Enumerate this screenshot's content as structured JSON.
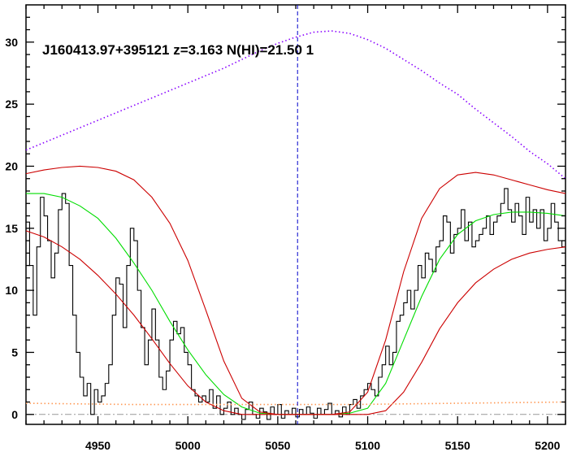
{
  "chart_data": {
    "type": "line",
    "title": "J160413.97+395121 z=3.163 N(HI)=21.50 1",
    "xlabel": "",
    "ylabel": "",
    "xlim": [
      4910,
      5210
    ],
    "ylim": [
      -0.8,
      33
    ],
    "x_ticks": [
      4950,
      5000,
      5050,
      5100,
      5150,
      5200
    ],
    "y_ticks": [
      0,
      5,
      10,
      15,
      20,
      25,
      30
    ],
    "grid": false,
    "vertical_marker": {
      "x": 5061,
      "style": "dashed",
      "color": "#0000cc"
    },
    "zero_line": {
      "y": 0,
      "style": "dash-dot",
      "color": "#999999"
    },
    "series": [
      {
        "style": "steps",
        "color": "#000000",
        "x": [
          4910,
          4912,
          4914,
          4916,
          4918,
          4920,
          4922,
          4924,
          4926,
          4928,
          4930,
          4932,
          4934,
          4936,
          4938,
          4940,
          4942,
          4944,
          4946,
          4948,
          4950,
          4952,
          4954,
          4956,
          4958,
          4960,
          4962,
          4964,
          4966,
          4968,
          4970,
          4972,
          4974,
          4976,
          4978,
          4980,
          4982,
          4984,
          4986,
          4988,
          4990,
          4992,
          4994,
          4996,
          4998,
          5000,
          5002,
          5004,
          5006,
          5008,
          5010,
          5012,
          5014,
          5016,
          5018,
          5020,
          5022,
          5024,
          5026,
          5028,
          5030,
          5032,
          5034,
          5036,
          5038,
          5040,
          5042,
          5044,
          5046,
          5048,
          5050,
          5052,
          5054,
          5056,
          5058,
          5060,
          5062,
          5064,
          5066,
          5068,
          5070,
          5072,
          5074,
          5076,
          5078,
          5080,
          5082,
          5084,
          5086,
          5088,
          5090,
          5092,
          5094,
          5096,
          5098,
          5100,
          5102,
          5104,
          5106,
          5108,
          5110,
          5112,
          5114,
          5116,
          5118,
          5120,
          5122,
          5124,
          5126,
          5128,
          5130,
          5132,
          5134,
          5136,
          5138,
          5140,
          5142,
          5144,
          5146,
          5148,
          5150,
          5152,
          5154,
          5156,
          5158,
          5160,
          5162,
          5164,
          5166,
          5168,
          5170,
          5172,
          5174,
          5176,
          5178,
          5180,
          5182,
          5184,
          5186,
          5188,
          5190,
          5192,
          5194,
          5196,
          5198,
          5200,
          5202,
          5204,
          5206,
          5208
        ],
        "y": [
          15.5,
          12.0,
          8.0,
          13.5,
          17.5,
          16.0,
          14.0,
          11.0,
          13.0,
          16.5,
          17.8,
          17.0,
          12.0,
          8.0,
          5.0,
          3.0,
          1.5,
          2.5,
          0.0,
          2.0,
          1.0,
          1.5,
          2.5,
          4.0,
          8.0,
          11.0,
          10.5,
          7.0,
          12.0,
          15.0,
          14.0,
          10.0,
          7.0,
          4.0,
          6.0,
          8.5,
          6.0,
          3.0,
          2.0,
          3.5,
          6.0,
          7.5,
          6.5,
          7.0,
          5.0,
          4.0,
          2.0,
          1.5,
          1.0,
          1.5,
          1.0,
          2.0,
          0.5,
          1.5,
          0.0,
          0.5,
          1.0,
          0.0,
          0.5,
          0.0,
          -0.4,
          0.4,
          1.0,
          0.0,
          -0.3,
          0.5,
          0.2,
          -0.4,
          0.6,
          0.0,
          0.8,
          -0.3,
          0.3,
          0.0,
          0.5,
          -0.2,
          0.4,
          0.0,
          0.6,
          0.1,
          -0.3,
          0.5,
          0.0,
          0.4,
          0.9,
          0.0,
          0.3,
          -0.2,
          0.6,
          0.0,
          0.8,
          1.2,
          0.5,
          1.5,
          2.0,
          2.5,
          2.0,
          1.5,
          3.0,
          4.0,
          5.5,
          4.0,
          5.0,
          7.5,
          8.0,
          9.0,
          10.0,
          8.5,
          10.0,
          12.0,
          11.0,
          13.0,
          12.5,
          11.5,
          13.5,
          14.0,
          16.0,
          15.5,
          13.0,
          14.5,
          15.0,
          16.5,
          14.0,
          15.5,
          13.5,
          14.0,
          14.5,
          15.0,
          16.0,
          14.5,
          15.5,
          16.0,
          17.0,
          18.2,
          16.5,
          15.5,
          17.0,
          16.0,
          14.5,
          17.5,
          15.5,
          16.5,
          15.0,
          16.5,
          14.0,
          15.0,
          17.0,
          15.5,
          14.0,
          13.5
        ]
      },
      {
        "style": "line",
        "color": "#00dd00",
        "x": [
          4910,
          4920,
          4930,
          4940,
          4950,
          4960,
          4970,
          4980,
          4990,
          5000,
          5010,
          5020,
          5030,
          5040,
          5050,
          5060,
          5070,
          5080,
          5090,
          5100,
          5110,
          5120,
          5130,
          5140,
          5150,
          5160,
          5170,
          5180,
          5190,
          5200,
          5210
        ],
        "y": [
          17.8,
          17.8,
          17.5,
          16.8,
          15.8,
          14.2,
          12.2,
          10.0,
          7.5,
          5.2,
          3.2,
          1.6,
          0.6,
          0.1,
          0.0,
          0.0,
          0.0,
          0.0,
          0.1,
          0.5,
          2.5,
          6.0,
          9.5,
          12.5,
          14.5,
          15.6,
          16.1,
          16.3,
          16.3,
          16.2,
          16.0
        ]
      },
      {
        "style": "line",
        "color": "#cc0000",
        "x": [
          4910,
          4920,
          4930,
          4940,
          4950,
          4960,
          4970,
          4980,
          4990,
          5000,
          5010,
          5020,
          5030,
          5040,
          5050,
          5060,
          5070,
          5080,
          5090,
          5100,
          5110,
          5120,
          5130,
          5140,
          5150,
          5160,
          5170,
          5180,
          5190,
          5200,
          5210
        ],
        "y": [
          19.4,
          19.7,
          19.9,
          20.0,
          19.9,
          19.6,
          18.9,
          17.5,
          15.4,
          12.4,
          8.4,
          4.3,
          1.3,
          0.2,
          0.0,
          0.0,
          0.0,
          0.0,
          0.2,
          1.8,
          6.0,
          11.5,
          15.8,
          18.2,
          19.3,
          19.5,
          19.3,
          18.9,
          18.5,
          18.1,
          17.8
        ]
      },
      {
        "style": "line",
        "color": "#cc0000",
        "x": [
          4910,
          4920,
          4930,
          4940,
          4950,
          4960,
          4970,
          4980,
          4990,
          5000,
          5010,
          5020,
          5030,
          5040,
          5050,
          5060,
          5070,
          5080,
          5090,
          5100,
          5110,
          5120,
          5130,
          5140,
          5150,
          5160,
          5170,
          5180,
          5190,
          5200,
          5210
        ],
        "y": [
          14.8,
          14.3,
          13.5,
          12.5,
          11.2,
          9.7,
          8.0,
          6.1,
          4.1,
          2.3,
          1.0,
          0.3,
          0.0,
          0.0,
          0.0,
          0.0,
          0.0,
          0.0,
          0.0,
          0.0,
          0.3,
          1.8,
          4.2,
          6.9,
          9.0,
          10.6,
          11.7,
          12.5,
          13.0,
          13.3,
          13.5
        ]
      },
      {
        "style": "dotted",
        "color": "#8800ff",
        "x": [
          4910,
          4920,
          4930,
          4940,
          4950,
          4960,
          4970,
          4980,
          4990,
          5000,
          5010,
          5020,
          5030,
          5040,
          5050,
          5060,
          5070,
          5080,
          5090,
          5100,
          5110,
          5120,
          5130,
          5140,
          5150,
          5160,
          5170,
          5180,
          5190,
          5200,
          5210
        ],
        "y": [
          21.3,
          21.9,
          22.5,
          23.1,
          23.7,
          24.3,
          24.9,
          25.5,
          26.1,
          26.7,
          27.3,
          27.9,
          28.6,
          29.3,
          29.9,
          30.4,
          30.8,
          30.9,
          30.7,
          30.2,
          29.5,
          28.6,
          27.7,
          26.7,
          25.8,
          24.6,
          23.5,
          22.4,
          21.2,
          20.2,
          19.0
        ]
      },
      {
        "style": "dotted",
        "color": "#ff9955",
        "x": [
          4910,
          4940,
          4970,
          5000,
          5030,
          5060,
          5090,
          5120,
          5150,
          5180,
          5210
        ],
        "y": [
          0.9,
          0.85,
          0.8,
          0.8,
          0.8,
          0.8,
          0.8,
          0.85,
          0.9,
          0.95,
          1.0
        ]
      }
    ]
  }
}
